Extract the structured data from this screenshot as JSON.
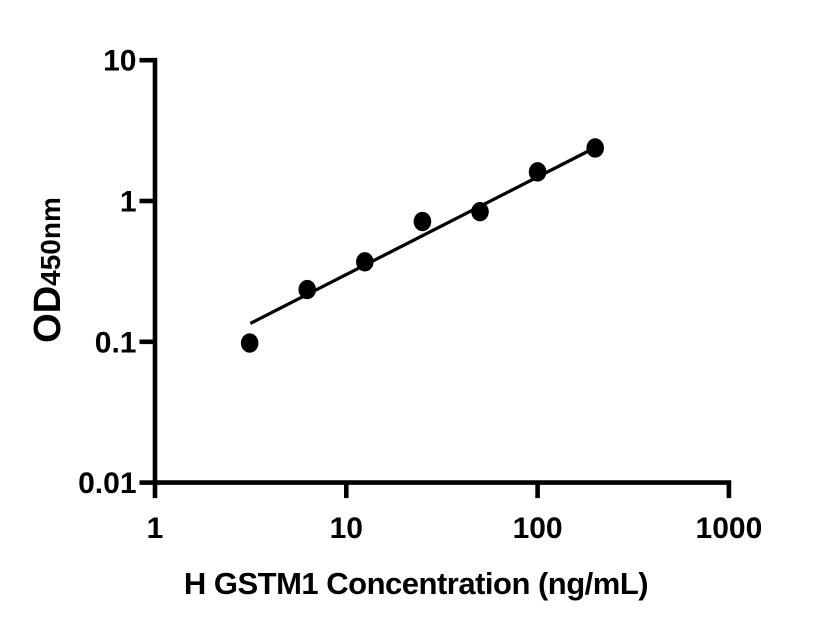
{
  "figure": {
    "background_color": "#ffffff",
    "foreground_color": "#000000"
  },
  "chart_data": {
    "type": "scatter",
    "title": "",
    "xlabel": "H GSTM1 Concentration (ng/mL)",
    "ylabel": "OD450nm",
    "ylabel_main": "OD",
    "ylabel_sub": "450nm",
    "x_scale": "log",
    "y_scale": "log",
    "xlim": [
      1,
      1000
    ],
    "ylim": [
      0.01,
      10
    ],
    "grid": false,
    "legend": "none",
    "x_ticks": [
      {
        "value": 1,
        "label": "1"
      },
      {
        "value": 10,
        "label": "10"
      },
      {
        "value": 100,
        "label": "100"
      },
      {
        "value": 1000,
        "label": "1000"
      }
    ],
    "y_ticks": [
      {
        "value": 10,
        "label": "10"
      },
      {
        "value": 1,
        "label": "1"
      },
      {
        "value": 0.1,
        "label": "0.1"
      },
      {
        "value": 0.01,
        "label": "0.01"
      }
    ],
    "series": [
      {
        "name": "standard-points",
        "marker": "filled-circle",
        "color": "#000000",
        "points": [
          {
            "x": 3.125,
            "y": 0.098
          },
          {
            "x": 6.25,
            "y": 0.235
          },
          {
            "x": 12.5,
            "y": 0.37
          },
          {
            "x": 25,
            "y": 0.715
          },
          {
            "x": 50,
            "y": 0.84
          },
          {
            "x": 100,
            "y": 1.61
          },
          {
            "x": 200,
            "y": 2.38
          }
        ]
      }
    ],
    "fit_line": {
      "color": "#000000",
      "x1": 3.15,
      "y1": 0.135,
      "x2": 197,
      "y2": 2.37
    }
  }
}
